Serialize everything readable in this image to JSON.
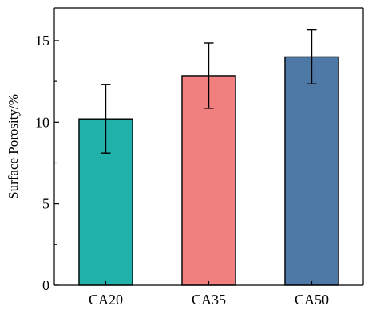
{
  "chart_data": {
    "type": "bar",
    "title": "",
    "xlabel": "",
    "ylabel": "Surface Porosity/%",
    "categories": [
      "CA20",
      "CA35",
      "CA50"
    ],
    "values": [
      10.2,
      12.85,
      14.0
    ],
    "errors": [
      2.1,
      2.0,
      1.65
    ],
    "colors": [
      "#20B2AA",
      "#F08080",
      "#4E79A7"
    ],
    "ylim": [
      0,
      17
    ],
    "yticks": [
      0,
      5,
      10,
      15
    ],
    "yticklabels": [
      "0",
      "5",
      "10",
      "15"
    ],
    "grid": false,
    "legend": "none"
  }
}
